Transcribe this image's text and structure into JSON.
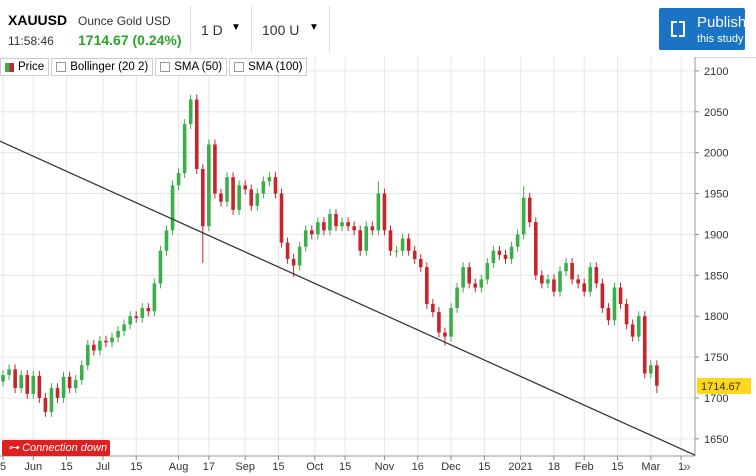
{
  "header": {
    "symbol": "XAUUSD",
    "description": "Ounce Gold USD",
    "time": "11:58:46",
    "quote": "1714.67 (0.24%)",
    "interval": "1 D",
    "range": "100 U",
    "publish": "Publish",
    "publish_sub": "this study",
    "status": "Connection down",
    "legend": [
      "Price",
      "Bollinger (20 2)",
      "SMA (50)",
      "SMA (100)"
    ]
  },
  "chart_data": {
    "type": "candlestick",
    "up_color": "#3bae49",
    "down_color": "#c8242c",
    "grid": true,
    "xlim": [
      -1,
      228.6
    ],
    "ylim": [
      1629,
      2117
    ],
    "xticks": [
      {
        "value": 0,
        "label": "5"
      },
      {
        "value": 10,
        "label": "Jun"
      },
      {
        "value": 21,
        "label": "15"
      },
      {
        "value": 33,
        "label": "Jul"
      },
      {
        "value": 44,
        "label": "15"
      },
      {
        "value": 58,
        "label": "Aug"
      },
      {
        "value": 68,
        "label": "17"
      },
      {
        "value": 80,
        "label": "Sep"
      },
      {
        "value": 91,
        "label": "15"
      },
      {
        "value": 103,
        "label": "Oct"
      },
      {
        "value": 113,
        "label": "15"
      },
      {
        "value": 126,
        "label": "Nov"
      },
      {
        "value": 137,
        "label": "16"
      },
      {
        "value": 148,
        "label": "Dec"
      },
      {
        "value": 159,
        "label": "15"
      },
      {
        "value": 171,
        "label": "2021"
      },
      {
        "value": 182,
        "label": "18"
      },
      {
        "value": 192,
        "label": "Feb"
      },
      {
        "value": 203,
        "label": "15"
      },
      {
        "value": 214,
        "label": "Mar"
      },
      {
        "value": 224,
        "label": "1"
      }
    ],
    "yticks": [
      1650,
      1700,
      1750,
      1800,
      1850,
      1900,
      1950,
      2000,
      2050,
      2100
    ],
    "last_price": 1714.67,
    "trendline": {
      "x": [
        -1,
        228.6
      ],
      "y": [
        2014,
        1630
      ]
    },
    "x": [
      0,
      2,
      4,
      6,
      8,
      10,
      12,
      14,
      16,
      18,
      20,
      22,
      24,
      26,
      28,
      30,
      32,
      34,
      36,
      38,
      40,
      42,
      44,
      46,
      48,
      50,
      52,
      54,
      56,
      58,
      60,
      62,
      64,
      66,
      68,
      70,
      72,
      74,
      76,
      78,
      80,
      82,
      84,
      86,
      88,
      90,
      92,
      94,
      96,
      98,
      100,
      102,
      104,
      106,
      108,
      110,
      112,
      114,
      116,
      118,
      120,
      122,
      124,
      126,
      128,
      130,
      132,
      134,
      136,
      138,
      140,
      142,
      144,
      146,
      148,
      150,
      152,
      154,
      156,
      158,
      160,
      162,
      164,
      166,
      168,
      170,
      172,
      174,
      176,
      178,
      180,
      182,
      184,
      186,
      188,
      190,
      192,
      194,
      196,
      198,
      200,
      202,
      204,
      206,
      208,
      210,
      212,
      214,
      216
    ],
    "ohlc": [
      [
        1720,
        1734,
        1714,
        1728
      ],
      [
        1728,
        1741,
        1722,
        1735
      ],
      [
        1735,
        1741,
        1706,
        1712
      ],
      [
        1712,
        1734,
        1706,
        1728
      ],
      [
        1728,
        1734,
        1699,
        1705
      ],
      [
        1705,
        1733,
        1699,
        1727
      ],
      [
        1727,
        1733,
        1694,
        1700
      ],
      [
        1700,
        1706,
        1677,
        1683
      ],
      [
        1683,
        1718,
        1677,
        1712
      ],
      [
        1712,
        1718,
        1694,
        1700
      ],
      [
        1700,
        1732,
        1694,
        1726
      ],
      [
        1726,
        1732,
        1706,
        1712
      ],
      [
        1712,
        1728,
        1706,
        1722
      ],
      [
        1722,
        1746,
        1716,
        1740
      ],
      [
        1740,
        1771,
        1734,
        1765
      ],
      [
        1765,
        1771,
        1752,
        1758
      ],
      [
        1758,
        1776,
        1752,
        1770
      ],
      [
        1770,
        1776,
        1762,
        1768
      ],
      [
        1768,
        1780,
        1762,
        1774
      ],
      [
        1774,
        1788,
        1768,
        1782
      ],
      [
        1782,
        1796,
        1776,
        1790
      ],
      [
        1790,
        1806,
        1784,
        1800
      ],
      [
        1800,
        1806,
        1792,
        1798
      ],
      [
        1798,
        1816,
        1792,
        1810
      ],
      [
        1810,
        1816,
        1800,
        1806
      ],
      [
        1806,
        1846,
        1800,
        1840
      ],
      [
        1840,
        1886,
        1834,
        1880
      ],
      [
        1880,
        1911,
        1874,
        1905
      ],
      [
        1905,
        1966,
        1899,
        1960
      ],
      [
        1960,
        1981,
        1954,
        1975
      ],
      [
        1975,
        2041,
        1969,
        2035
      ],
      [
        2035,
        2071,
        2029,
        2065
      ],
      [
        2065,
        2071,
        1974,
        1980
      ],
      [
        1980,
        1986,
        1865,
        1910
      ],
      [
        1910,
        2016,
        1904,
        2010
      ],
      [
        2010,
        2016,
        1944,
        1950
      ],
      [
        1950,
        1956,
        1934,
        1940
      ],
      [
        1940,
        1976,
        1934,
        1970
      ],
      [
        1970,
        1976,
        1924,
        1930
      ],
      [
        1930,
        1966,
        1924,
        1960
      ],
      [
        1960,
        1966,
        1949,
        1955
      ],
      [
        1955,
        1961,
        1929,
        1935
      ],
      [
        1935,
        1956,
        1929,
        1950
      ],
      [
        1950,
        1971,
        1944,
        1965
      ],
      [
        1965,
        1976,
        1959,
        1970
      ],
      [
        1970,
        1976,
        1944,
        1950
      ],
      [
        1950,
        1956,
        1884,
        1890
      ],
      [
        1890,
        1896,
        1864,
        1870
      ],
      [
        1870,
        1876,
        1848,
        1862
      ],
      [
        1862,
        1891,
        1856,
        1885
      ],
      [
        1885,
        1911,
        1879,
        1905
      ],
      [
        1905,
        1911,
        1894,
        1900
      ],
      [
        1900,
        1921,
        1894,
        1915
      ],
      [
        1915,
        1921,
        1899,
        1905
      ],
      [
        1905,
        1931,
        1899,
        1925
      ],
      [
        1925,
        1931,
        1904,
        1910
      ],
      [
        1910,
        1921,
        1904,
        1915
      ],
      [
        1915,
        1921,
        1904,
        1910
      ],
      [
        1910,
        1916,
        1899,
        1905
      ],
      [
        1905,
        1911,
        1874,
        1880
      ],
      [
        1880,
        1916,
        1874,
        1910
      ],
      [
        1910,
        1916,
        1899,
        1905
      ],
      [
        1905,
        1965,
        1899,
        1950
      ],
      [
        1950,
        1956,
        1899,
        1905
      ],
      [
        1905,
        1911,
        1874,
        1880
      ],
      [
        1880,
        1886,
        1872,
        1880
      ],
      [
        1880,
        1901,
        1874,
        1895
      ],
      [
        1895,
        1901,
        1874,
        1880
      ],
      [
        1880,
        1886,
        1864,
        1870
      ],
      [
        1870,
        1876,
        1854,
        1860
      ],
      [
        1860,
        1866,
        1809,
        1815
      ],
      [
        1815,
        1821,
        1799,
        1805
      ],
      [
        1805,
        1811,
        1774,
        1780
      ],
      [
        1780,
        1786,
        1764,
        1775
      ],
      [
        1775,
        1816,
        1769,
        1810
      ],
      [
        1810,
        1841,
        1804,
        1835
      ],
      [
        1835,
        1866,
        1829,
        1860
      ],
      [
        1860,
        1866,
        1834,
        1840
      ],
      [
        1840,
        1846,
        1829,
        1835
      ],
      [
        1835,
        1851,
        1829,
        1845
      ],
      [
        1845,
        1871,
        1839,
        1865
      ],
      [
        1865,
        1886,
        1859,
        1880
      ],
      [
        1880,
        1886,
        1869,
        1875
      ],
      [
        1875,
        1881,
        1864,
        1870
      ],
      [
        1870,
        1891,
        1864,
        1885
      ],
      [
        1885,
        1906,
        1879,
        1900
      ],
      [
        1900,
        1959,
        1894,
        1945
      ],
      [
        1945,
        1951,
        1909,
        1915
      ],
      [
        1915,
        1921,
        1844,
        1850
      ],
      [
        1850,
        1856,
        1834,
        1840
      ],
      [
        1840,
        1851,
        1834,
        1845
      ],
      [
        1845,
        1851,
        1824,
        1830
      ],
      [
        1830,
        1861,
        1824,
        1855
      ],
      [
        1855,
        1871,
        1849,
        1865
      ],
      [
        1865,
        1871,
        1839,
        1845
      ],
      [
        1845,
        1851,
        1834,
        1840
      ],
      [
        1840,
        1846,
        1824,
        1830
      ],
      [
        1830,
        1866,
        1824,
        1860
      ],
      [
        1860,
        1866,
        1834,
        1840
      ],
      [
        1840,
        1846,
        1804,
        1810
      ],
      [
        1810,
        1816,
        1789,
        1795
      ],
      [
        1795,
        1841,
        1789,
        1835
      ],
      [
        1835,
        1841,
        1809,
        1815
      ],
      [
        1815,
        1821,
        1784,
        1790
      ],
      [
        1790,
        1796,
        1769,
        1775
      ],
      [
        1775,
        1806,
        1769,
        1800
      ],
      [
        1800,
        1806,
        1724,
        1730
      ],
      [
        1730,
        1746,
        1724,
        1740
      ],
      [
        1740,
        1746,
        1706,
        1715
      ]
    ]
  }
}
